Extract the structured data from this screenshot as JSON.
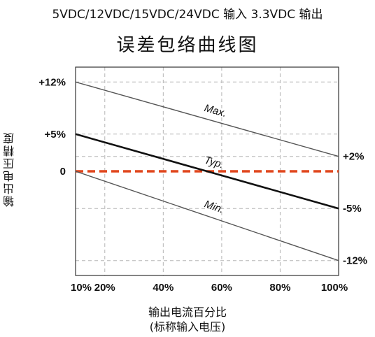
{
  "header": {
    "text": "5VDC/12VDC/15VDC/24VDC 输入 3.3VDC 输出"
  },
  "chart_data": {
    "type": "line",
    "title": "误差包络曲线图",
    "ylabel": "输出电压精度",
    "xlabel_line1": "输出电流百分比",
    "xlabel_line2": "(标称输入电压)",
    "x": [
      10,
      100
    ],
    "x_tick_labels": [
      "10%",
      "20%",
      "40%",
      "60%",
      "80%",
      "100%"
    ],
    "x_tick_values": [
      10,
      20,
      40,
      60,
      80,
      100
    ],
    "xlim": [
      10,
      100
    ],
    "ylim": [
      -14,
      14
    ],
    "left_tick_labels": [
      {
        "value": 12,
        "text": "+12%"
      },
      {
        "value": 5,
        "text": "+5%"
      },
      {
        "value": 0,
        "text": "0"
      }
    ],
    "right_tick_labels": [
      {
        "value": 2,
        "text": "+2%"
      },
      {
        "value": -5,
        "text": "-5%"
      },
      {
        "value": -12,
        "text": "-12%"
      }
    ],
    "grid": true,
    "series": [
      {
        "name": "Max.",
        "values": [
          12,
          2
        ],
        "color": "#555555",
        "label_at_x": 50
      },
      {
        "name": "Typ.",
        "values": [
          5,
          -5
        ],
        "color": "#111111",
        "label_at_x": 50
      },
      {
        "name": "Min.",
        "values": [
          0,
          -12
        ],
        "color": "#555555",
        "label_at_x": 50
      }
    ],
    "reference_line": {
      "value": 0,
      "color": "#e0461d",
      "style": "dashed"
    }
  }
}
